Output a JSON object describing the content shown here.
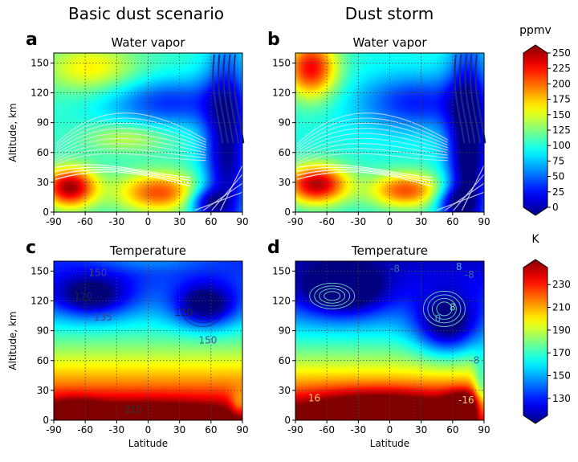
{
  "chart_data": {
    "type": "heatmap",
    "column_titles": [
      "Basic dust scenario",
      "Dust storm"
    ],
    "latitude_ticks": [
      -90,
      -60,
      -30,
      0,
      30,
      60,
      90
    ],
    "panels": [
      {
        "letter": "a",
        "title": "Water vapor",
        "variable": "water_vapor",
        "unit": "ppmv",
        "xlabel": "",
        "ylabel": "Altitude, km",
        "xlim": [
          -90,
          90
        ],
        "ylim": [
          0,
          160
        ],
        "yticks": [
          0,
          30,
          60,
          90,
          120,
          150
        ],
        "contour_labels": [],
        "has_streamlines": true
      },
      {
        "letter": "b",
        "title": "Water vapor",
        "variable": "water_vapor",
        "unit": "ppmv",
        "xlabel": "",
        "ylabel": "",
        "xlim": [
          -90,
          90
        ],
        "ylim": [
          0,
          160
        ],
        "yticks": [
          0,
          30,
          60,
          90,
          120,
          150
        ],
        "contour_labels": [],
        "has_streamlines": true
      },
      {
        "letter": "c",
        "title": "Temperature",
        "variable": "temperature",
        "unit": "K",
        "xlabel": "Latitude",
        "ylabel": "Altitude, km",
        "xlim": [
          -90,
          90
        ],
        "ylim": [
          0,
          160
        ],
        "yticks": [
          0,
          30,
          60,
          90,
          120,
          150
        ],
        "contour_labels": [
          {
            "text": "150",
            "lat": -48,
            "alt": 148,
            "color": "#3a4a8a"
          },
          {
            "text": "120",
            "lat": -62,
            "alt": 124,
            "color": "#222244"
          },
          {
            "text": "135",
            "lat": -43,
            "alt": 103,
            "color": "#3a4a8a"
          },
          {
            "text": "120",
            "lat": 34,
            "alt": 108,
            "color": "#222244"
          },
          {
            "text": "150",
            "lat": 57,
            "alt": 80,
            "color": "#3a5a9a"
          },
          {
            "text": "210",
            "lat": -14,
            "alt": 10,
            "color": "#333"
          }
        ],
        "has_streamlines": false
      },
      {
        "letter": "d",
        "title": "Temperature",
        "variable": "temperature",
        "unit": "K",
        "xlabel": "Latitude",
        "ylabel": "",
        "xlim": [
          -90,
          90
        ],
        "ylim": [
          0,
          160
        ],
        "yticks": [
          0,
          30,
          60,
          90,
          120,
          150
        ],
        "contour_labels": [
          {
            "text": "-8",
            "lat": 5,
            "alt": 152,
            "color": "#3a6aa8"
          },
          {
            "text": "8",
            "lat": 66,
            "alt": 154,
            "color": "#44aacc"
          },
          {
            "text": "-8",
            "lat": 76,
            "alt": 146,
            "color": "#3a6aa8"
          },
          {
            "text": "8",
            "lat": 60,
            "alt": 113,
            "color": "#77ddbb"
          },
          {
            "text": "0",
            "lat": 46,
            "alt": 102,
            "color": "#44aacc"
          },
          {
            "text": "-8",
            "lat": 81,
            "alt": 60,
            "color": "#3a6aa8"
          },
          {
            "text": "16",
            "lat": -72,
            "alt": 22,
            "color": "#ffcc66"
          },
          {
            "text": "-16",
            "lat": 73,
            "alt": 20,
            "color": "#ffcc66"
          }
        ],
        "has_streamlines": false
      }
    ],
    "colorbars": [
      {
        "label": "ppmv",
        "variable": "water_vapor",
        "min": 0,
        "max": 250,
        "ticks": [
          0,
          25,
          50,
          75,
          100,
          125,
          150,
          175,
          200,
          225,
          250
        ],
        "colormap": "jet"
      },
      {
        "label": "K",
        "variable": "temperature",
        "min": 115,
        "max": 245,
        "ticks": [
          130,
          150,
          170,
          190,
          210,
          230
        ],
        "colormap": "jet"
      }
    ]
  }
}
